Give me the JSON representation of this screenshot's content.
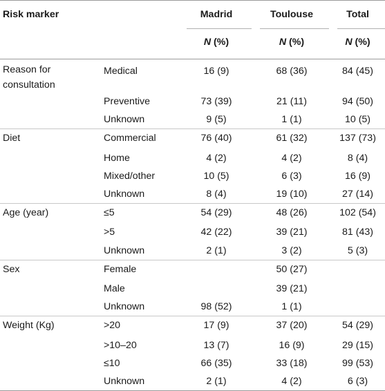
{
  "header": {
    "risk_marker": "Risk marker",
    "madrid": "Madrid",
    "toulouse": "Toulouse",
    "total": "Total",
    "n_label": "N",
    "pct_label": " (%)"
  },
  "groups": [
    {
      "marker": "Reason for consultation",
      "rows": [
        {
          "level": "Medical",
          "madrid": "16 (9)",
          "toulouse": "68 (36)",
          "total": "84 (45)"
        },
        {
          "level": "Preventive",
          "madrid": "73 (39)",
          "toulouse": "21 (11)",
          "total": "94 (50)"
        },
        {
          "level": "Unknown",
          "madrid": "9 (5)",
          "toulouse": "1 (1)",
          "total": "10 (5)"
        }
      ]
    },
    {
      "marker": "Diet",
      "rows": [
        {
          "level": "Commercial",
          "madrid": "76 (40)",
          "toulouse": "61 (32)",
          "total": "137 (73)"
        },
        {
          "level": "Home",
          "madrid": "4 (2)",
          "toulouse": "4 (2)",
          "total": "8 (4)"
        },
        {
          "level": "Mixed/other",
          "madrid": "10 (5)",
          "toulouse": "6 (3)",
          "total": "16 (9)"
        },
        {
          "level": "Unknown",
          "madrid": "8 (4)",
          "toulouse": "19 (10)",
          "total": "27 (14)"
        }
      ]
    },
    {
      "marker": "Age (year)",
      "rows": [
        {
          "level": "≤5",
          "madrid": "54 (29)",
          "toulouse": "48 (26)",
          "total": "102 (54)"
        },
        {
          "level": ">5",
          "madrid": "42 (22)",
          "toulouse": "39 (21)",
          "total": "81 (43)"
        },
        {
          "level": "Unknown",
          "madrid": "2 (1)",
          "toulouse": "3 (2)",
          "total": "5 (3)"
        }
      ]
    },
    {
      "marker": "Sex",
      "rows": [
        {
          "level": "Female",
          "madrid": "",
          "toulouse": "50 (27)",
          "total": ""
        },
        {
          "level": "Male",
          "madrid": "",
          "toulouse": "39 (21)",
          "total": ""
        },
        {
          "level": "Unknown",
          "madrid": "98 (52)",
          "toulouse": "1 (1)",
          "total": ""
        }
      ]
    },
    {
      "marker": "Weight (Kg)",
      "rows": [
        {
          "level": ">20",
          "madrid": "17 (9)",
          "toulouse": "37 (20)",
          "total": "54 (29)"
        },
        {
          "level": ">10–20",
          "madrid": "13 (7)",
          "toulouse": "16 (9)",
          "total": "29 (15)"
        },
        {
          "level": "≤10",
          "madrid": "66 (35)",
          "toulouse": "33 (18)",
          "total": "99 (53)"
        },
        {
          "level": "Unknown",
          "madrid": "2 (1)",
          "toulouse": "4 (2)",
          "total": "6 (3)"
        }
      ]
    }
  ]
}
